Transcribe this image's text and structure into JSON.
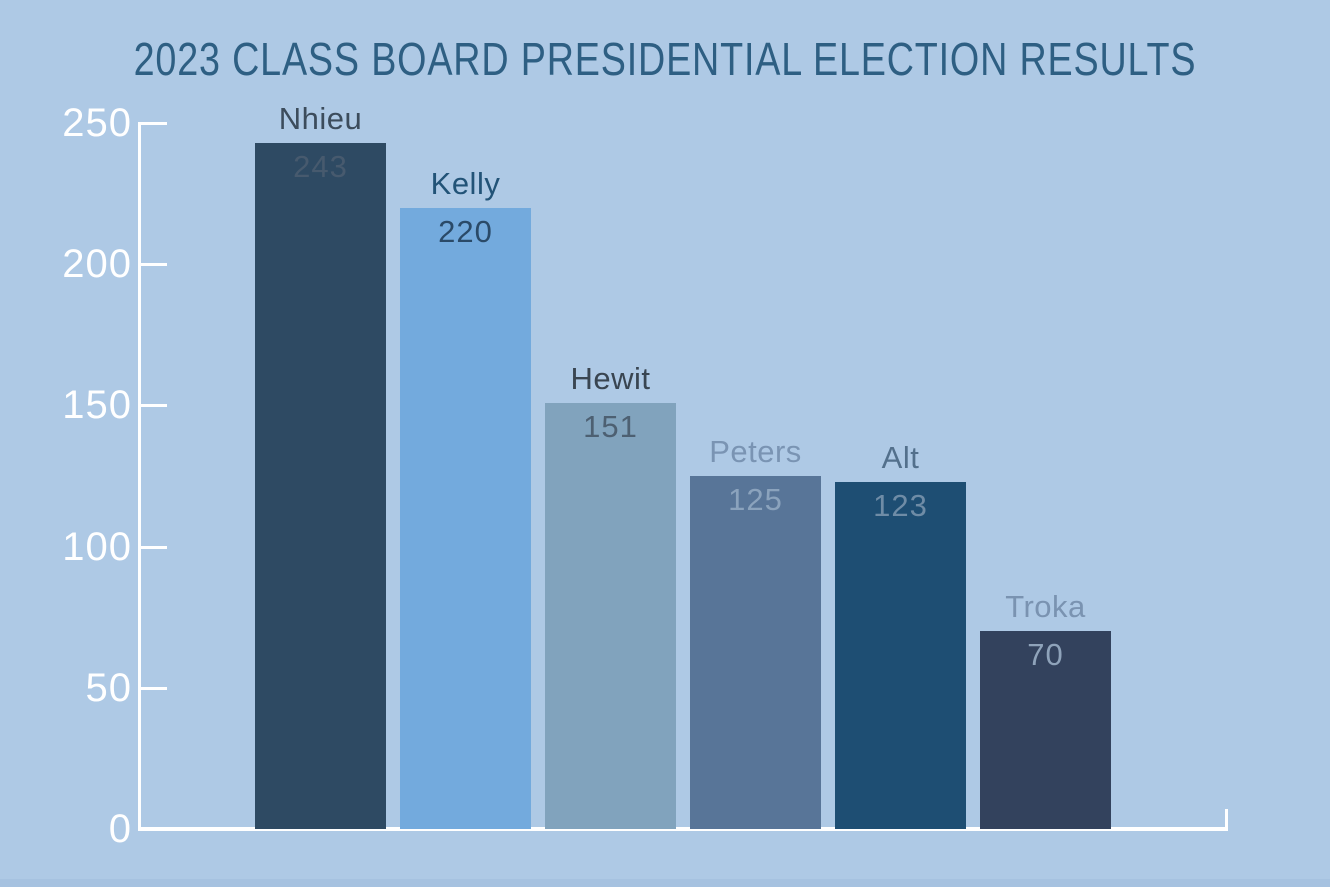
{
  "chart_data": {
    "type": "bar",
    "title": "2023 CLASS BOARD PRESIDENTIAL ELECTION RESULTS",
    "xlabel": "",
    "ylabel": "",
    "categories": [
      "Nhieu",
      "Kelly",
      "Hewit",
      "Peters",
      "Alt",
      "Troka"
    ],
    "values": [
      243,
      220,
      151,
      125,
      123,
      70
    ],
    "ylim": [
      0,
      250
    ],
    "yticks": [
      0,
      50,
      100,
      150,
      200,
      250
    ],
    "grid": false,
    "legend": false,
    "bar_colors": [
      "#2e4a63",
      "#73aadd",
      "#81a3bd",
      "#587598",
      "#1e4e73",
      "#33425d"
    ],
    "name_label_colors": [
      "#3c4c5c",
      "#225377",
      "#394551",
      "#7a94b3",
      "#53708c",
      "#7a93b1"
    ],
    "value_label_colors": [
      "#475a6e",
      "#2a4a68",
      "#4d6072",
      "#8ba3bd",
      "#6f8ca6",
      "#8fa3ba"
    ]
  },
  "style": {
    "background_color": "#aec9e5",
    "bottom_strip_color": "#a6c2e0",
    "title_color": "#2e5f83",
    "axis_color": "#ffffff",
    "tick_label_color": "#ffffff"
  }
}
